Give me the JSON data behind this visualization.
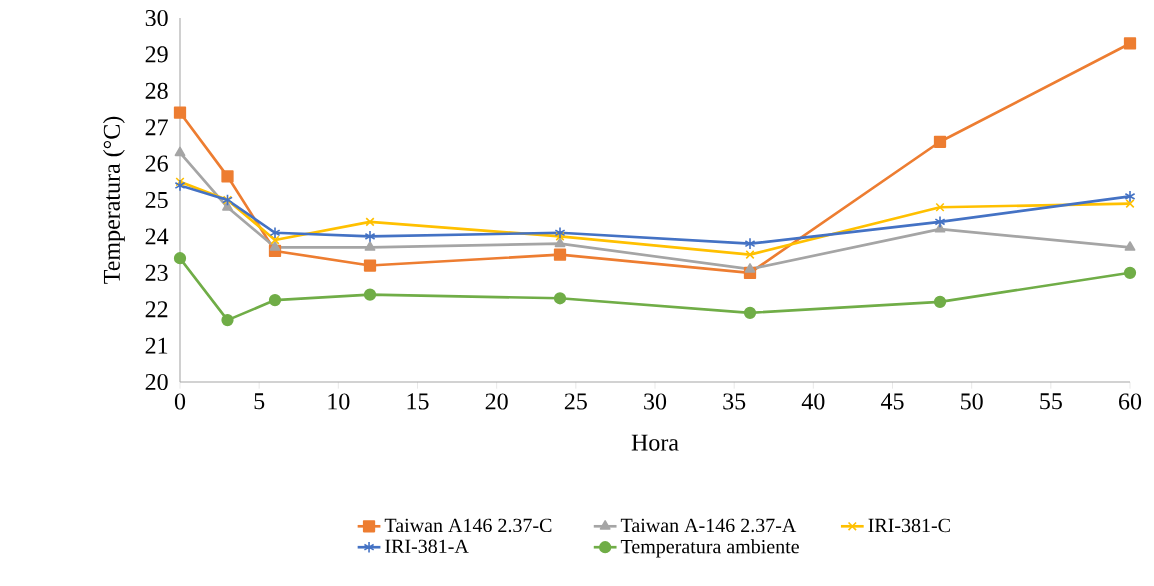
{
  "chart_data": {
    "type": "line",
    "xlabel": "Hora",
    "ylabel": "Temperatura (°C)",
    "x": [
      0,
      3,
      6,
      12,
      24,
      36,
      48,
      60
    ],
    "xlim": [
      0,
      60
    ],
    "xticks": [
      0,
      5,
      10,
      15,
      20,
      25,
      30,
      35,
      40,
      45,
      50,
      55,
      60
    ],
    "ylim": [
      20,
      30
    ],
    "yticks": [
      20,
      21,
      22,
      23,
      24,
      25,
      26,
      27,
      28,
      29,
      30
    ],
    "grid": false,
    "legend": "bottom",
    "line_style": "solid",
    "series": [
      {
        "name": "Taiwan A146 2.37-C",
        "color": "#ed7d31",
        "marker": "square",
        "values": [
          27.4,
          25.65,
          23.6,
          23.2,
          23.5,
          23.0,
          26.6,
          29.3
        ]
      },
      {
        "name": "Taiwan A-146 2.37-A",
        "color": "#a5a5a5",
        "marker": "triangle",
        "values": [
          26.3,
          24.8,
          23.7,
          23.7,
          23.8,
          23.1,
          24.2,
          23.7
        ]
      },
      {
        "name": "IRI-381-C",
        "color": "#ffc000",
        "marker": "cross",
        "values": [
          25.5,
          25.0,
          23.9,
          24.4,
          24.0,
          23.5,
          24.8,
          24.9
        ]
      },
      {
        "name": "IRI-381-A",
        "color": "#4472c4",
        "marker": "cross",
        "values": [
          25.4,
          25.0,
          24.1,
          24.0,
          24.1,
          23.8,
          24.4,
          25.1
        ]
      },
      {
        "name": "Temperatura ambiente",
        "color": "#70ad47",
        "marker": "circle",
        "values": [
          23.4,
          21.7,
          22.25,
          22.4,
          22.3,
          21.9,
          22.2,
          23.0
        ]
      }
    ]
  }
}
